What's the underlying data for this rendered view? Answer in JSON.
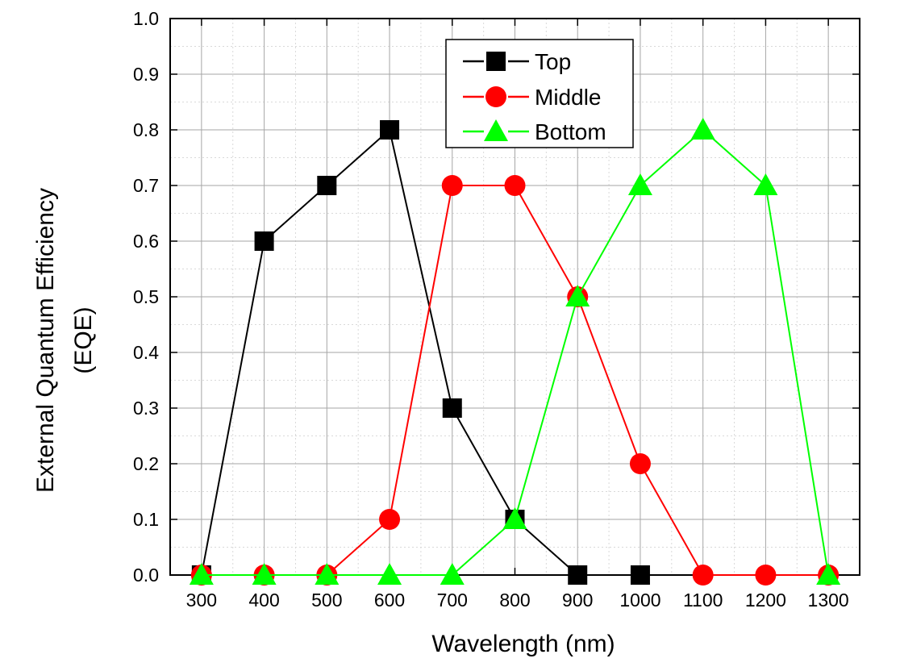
{
  "chart_data": {
    "type": "line",
    "title": "",
    "xlabel": "Wavelength (nm)",
    "ylabel_line1": "External Quantum Efficiency",
    "ylabel_line2": "(EQE)",
    "xlim": [
      250,
      1350
    ],
    "ylim": [
      0.0,
      1.0
    ],
    "x_ticks": [
      300,
      400,
      500,
      600,
      700,
      800,
      900,
      1000,
      1100,
      1200,
      1300
    ],
    "x_tick_labels": [
      "300",
      "400",
      "500",
      "600",
      "700",
      "800",
      "900",
      "1000",
      "1100",
      "1200",
      "1300"
    ],
    "y_ticks": [
      0.0,
      0.1,
      0.2,
      0.3,
      0.4,
      0.5,
      0.6,
      0.7,
      0.8,
      0.9,
      1.0
    ],
    "y_tick_labels": [
      "0.0",
      "0.1",
      "0.2",
      "0.3",
      "0.4",
      "0.5",
      "0.6",
      "0.7",
      "0.8",
      "0.9",
      "1.0"
    ],
    "grid": true,
    "legend_position": "top-center",
    "x": [
      300,
      400,
      500,
      600,
      700,
      800,
      900,
      1000,
      1100,
      1200,
      1300
    ],
    "series": [
      {
        "name": "Top",
        "color": "#000000",
        "marker": "square",
        "values": [
          0.0,
          0.6,
          0.7,
          0.8,
          0.3,
          0.1,
          0.0,
          0.0,
          null,
          null,
          null
        ]
      },
      {
        "name": "Middle",
        "color": "#ff0000",
        "marker": "circle",
        "values": [
          0.0,
          0.0,
          0.0,
          0.1,
          0.7,
          0.7,
          0.5,
          0.2,
          0.0,
          0.0,
          0.0
        ]
      },
      {
        "name": "Bottom",
        "color": "#00ff00",
        "marker": "triangle",
        "values": [
          0.0,
          0.0,
          0.0,
          0.0,
          0.0,
          0.1,
          0.5,
          0.7,
          0.8,
          0.7,
          0.0
        ]
      }
    ]
  }
}
